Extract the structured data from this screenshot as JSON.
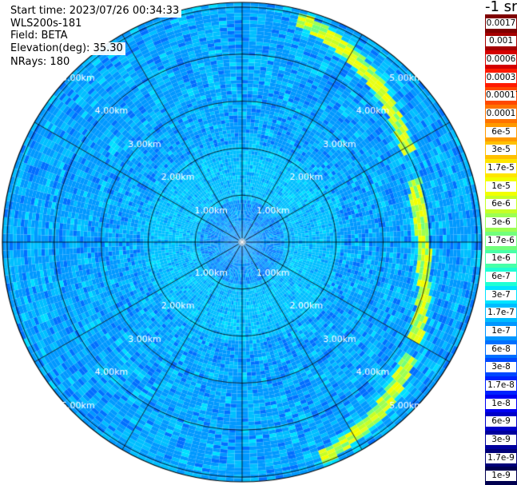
{
  "info": {
    "start_time": "Start time: 2023/07/26 00:34:33",
    "instrument": "WLS200s-181",
    "field": "Field: BETA",
    "elevation": "Elevation(deg): 35.30",
    "nrays": "NRays: 180"
  },
  "colorbar": {
    "unit_label": "-1 sr",
    "labels": [
      "0.0017",
      "0.001",
      "0.0006",
      "0.0003",
      "0.00017",
      "0.0001",
      "6e-5",
      "3e-5",
      "1.7e-5",
      "1e-5",
      "6e-6",
      "3e-6",
      "1.7e-6",
      "1e-6",
      "6e-7",
      "3e-7",
      "1.7e-7",
      "1e-7",
      "6e-8",
      "3e-8",
      "1.7e-8",
      "1e-8",
      "6e-9",
      "3e-9",
      "1.7e-9",
      "1e-9"
    ],
    "colors": [
      "#7f0000",
      "#a50000",
      "#d40000",
      "#ff1a00",
      "#ff4800",
      "#ff7200",
      "#ff9900",
      "#ffc000",
      "#ffe600",
      "#f2ff00",
      "#c6ff26",
      "#9cff52",
      "#72ff7c",
      "#48ffa8",
      "#1effd4",
      "#00e4ff",
      "#00bcff",
      "#0096ff",
      "#0070ff",
      "#0048ff",
      "#0022ff",
      "#0000f2",
      "#0000c8",
      "#00009e",
      "#000078",
      "#000050"
    ]
  },
  "chart_data": {
    "type": "heatmap",
    "projection": "polar (PPI scan)",
    "field": "BETA",
    "colorscale": "logarithmic, 1e-9 to 0.0017 sr^-1",
    "range_rings_km": [
      1,
      2,
      3,
      4,
      5
    ],
    "range_labels": [
      "1.00km",
      "2.00km",
      "3.00km",
      "4.00km",
      "5.00km"
    ],
    "max_range_km": 5.1,
    "radial_spokes_deg": [
      0,
      30,
      60,
      90,
      120,
      150,
      180,
      210,
      240,
      270,
      300,
      330
    ],
    "background_levels": {
      "0-0.9km": "1e-7 to 3e-8",
      "0.9-2.1km": "1.7e-7 to 1e-7",
      "2.1-5.1km": "1e-7 to 3e-8"
    },
    "feature": {
      "description_value": "enhanced backscatter band 1.7e-6 to 6e-7",
      "azimuth_deg_start": 15,
      "azimuth_deg_end": 160,
      "range_km_approx": [
        4.9,
        4.5,
        4.1,
        3.8,
        3.9,
        4.2,
        4.6,
        4.9
      ]
    }
  }
}
